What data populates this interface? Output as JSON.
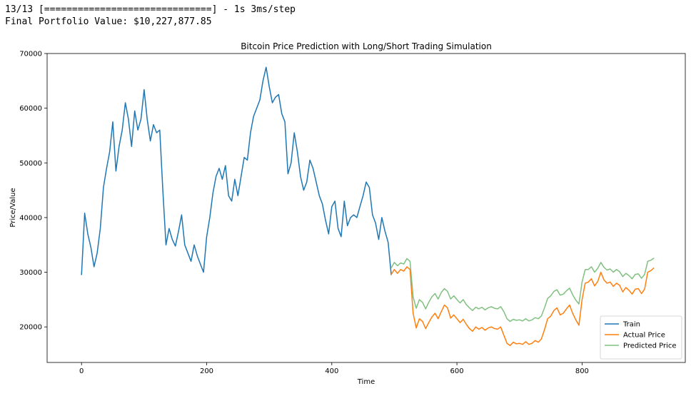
{
  "console": {
    "progress_line": "13/13 [==============================] - 1s 3ms/step",
    "portfolio_line": "Final Portfolio Value: $10,227,877.85"
  },
  "chart_data": {
    "type": "line",
    "title": "Bitcoin Price Prediction with Long/Short Trading Simulation",
    "xlabel": "Time",
    "ylabel": "Price/Value",
    "xlim": [
      -55,
      965
    ],
    "ylim": [
      13500,
      70000
    ],
    "xticks": [
      0,
      200,
      400,
      600,
      800
    ],
    "yticks": [
      20000,
      30000,
      40000,
      50000,
      60000,
      70000
    ],
    "legend_position": "bottom-right",
    "grid": false,
    "series": [
      {
        "name": "Train",
        "color": "#1f77b4",
        "x": [
          0,
          5,
          10,
          15,
          20,
          25,
          30,
          35,
          40,
          45,
          50,
          55,
          60,
          65,
          70,
          75,
          80,
          85,
          90,
          95,
          100,
          105,
          110,
          115,
          120,
          125,
          130,
          135,
          140,
          145,
          150,
          155,
          160,
          165,
          170,
          175,
          180,
          185,
          190,
          195,
          200,
          205,
          210,
          215,
          220,
          225,
          230,
          235,
          240,
          245,
          250,
          255,
          260,
          265,
          270,
          275,
          280,
          285,
          290,
          295,
          300,
          305,
          310,
          315,
          320,
          325,
          330,
          335,
          340,
          345,
          350,
          355,
          360,
          365,
          370,
          375,
          380,
          385,
          390,
          395,
          400,
          405,
          410,
          415,
          420,
          425,
          430,
          435,
          440,
          445,
          450,
          455,
          460,
          465,
          470,
          475,
          480,
          485,
          490,
          495
        ],
        "y": [
          29500,
          40800,
          37000,
          34500,
          31000,
          33500,
          38000,
          45500,
          49000,
          52000,
          57500,
          48500,
          53000,
          56000,
          61000,
          58000,
          53000,
          59500,
          56000,
          58000,
          63400,
          58000,
          54000,
          57000,
          55500,
          56000,
          45000,
          35000,
          38000,
          36000,
          34800,
          37500,
          40500,
          35000,
          33500,
          32000,
          35000,
          33000,
          31500,
          30000,
          36500,
          40000,
          44500,
          47500,
          49000,
          47000,
          49500,
          44000,
          43000,
          47000,
          44000,
          47500,
          51000,
          50500,
          55500,
          58500,
          60000,
          61500,
          65000,
          67500,
          64000,
          61000,
          62000,
          62500,
          59000,
          57500,
          48000,
          50000,
          55500,
          52000,
          47500,
          45000,
          46500,
          50500,
          49000,
          46500,
          44000,
          42500,
          39500,
          37000,
          42000,
          43000,
          38000,
          36500,
          43000,
          38500,
          40000,
          40500,
          40000,
          42000,
          44000,
          46500,
          45500,
          40500,
          39000,
          36000,
          40000,
          37500,
          35500,
          29500
        ]
      },
      {
        "name": "Actual Price",
        "color": "#ff7f0e",
        "x": [
          495,
          500,
          505,
          510,
          515,
          520,
          525,
          530,
          535,
          540,
          545,
          550,
          555,
          560,
          565,
          570,
          575,
          580,
          585,
          590,
          595,
          600,
          605,
          610,
          615,
          620,
          625,
          630,
          635,
          640,
          645,
          650,
          655,
          660,
          665,
          670,
          675,
          680,
          685,
          690,
          695,
          700,
          705,
          710,
          715,
          720,
          725,
          730,
          735,
          740,
          745,
          750,
          755,
          760,
          765,
          770,
          775,
          780,
          785,
          790,
          795,
          800,
          805,
          810,
          815,
          820,
          825,
          830,
          835,
          840,
          845,
          850,
          855,
          860,
          865,
          870,
          875,
          880,
          885,
          890,
          895,
          900,
          905,
          910,
          915
        ],
        "y": [
          29600,
          30500,
          29800,
          30500,
          30200,
          31000,
          30500,
          22500,
          19800,
          21500,
          21000,
          19700,
          20800,
          21800,
          22500,
          21500,
          22800,
          24000,
          23500,
          21600,
          22200,
          21500,
          20800,
          21400,
          20500,
          19700,
          19200,
          20000,
          19600,
          19900,
          19400,
          19800,
          20000,
          19700,
          19600,
          20000,
          18500,
          17000,
          16600,
          17200,
          16900,
          17000,
          16800,
          17300,
          16800,
          17000,
          17500,
          17200,
          17800,
          19500,
          21500,
          22000,
          23000,
          23500,
          22200,
          22500,
          23300,
          24000,
          22500,
          21300,
          20300,
          25000,
          28000,
          28200,
          28800,
          27500,
          28300,
          30000,
          28600,
          28000,
          28200,
          27400,
          28000,
          27600,
          26400,
          27200,
          26700,
          26000,
          26900,
          27000,
          26100,
          26900,
          30000,
          30300,
          30800
        ]
      },
      {
        "name": "Predicted Price",
        "color": "#80c080",
        "x": [
          495,
          500,
          505,
          510,
          515,
          520,
          525,
          530,
          535,
          540,
          545,
          550,
          555,
          560,
          565,
          570,
          575,
          580,
          585,
          590,
          595,
          600,
          605,
          610,
          615,
          620,
          625,
          630,
          635,
          640,
          645,
          650,
          655,
          660,
          665,
          670,
          675,
          680,
          685,
          690,
          695,
          700,
          705,
          710,
          715,
          720,
          725,
          730,
          735,
          740,
          745,
          750,
          755,
          760,
          765,
          770,
          775,
          780,
          785,
          790,
          795,
          800,
          805,
          810,
          815,
          820,
          825,
          830,
          835,
          840,
          845,
          850,
          855,
          860,
          865,
          870,
          875,
          880,
          885,
          890,
          895,
          900,
          905,
          910,
          915
        ],
        "y": [
          30800,
          31800,
          31200,
          31700,
          31500,
          32500,
          32000,
          25500,
          23400,
          25000,
          24500,
          23300,
          24500,
          25500,
          26100,
          25100,
          26300,
          27000,
          26500,
          25100,
          25700,
          25000,
          24400,
          25000,
          24100,
          23500,
          23000,
          23600,
          23300,
          23600,
          23100,
          23500,
          23700,
          23400,
          23300,
          23700,
          22800,
          21500,
          21000,
          21400,
          21200,
          21300,
          21100,
          21500,
          21100,
          21300,
          21700,
          21500,
          22000,
          23500,
          25200,
          25700,
          26500,
          26800,
          25800,
          26000,
          26600,
          27100,
          25900,
          24900,
          24200,
          28200,
          30500,
          30500,
          31000,
          30000,
          30700,
          31800,
          30900,
          30400,
          30600,
          30000,
          30500,
          30100,
          29200,
          29800,
          29400,
          28800,
          29600,
          29700,
          28900,
          29600,
          32000,
          32200,
          32600
        ]
      }
    ]
  }
}
